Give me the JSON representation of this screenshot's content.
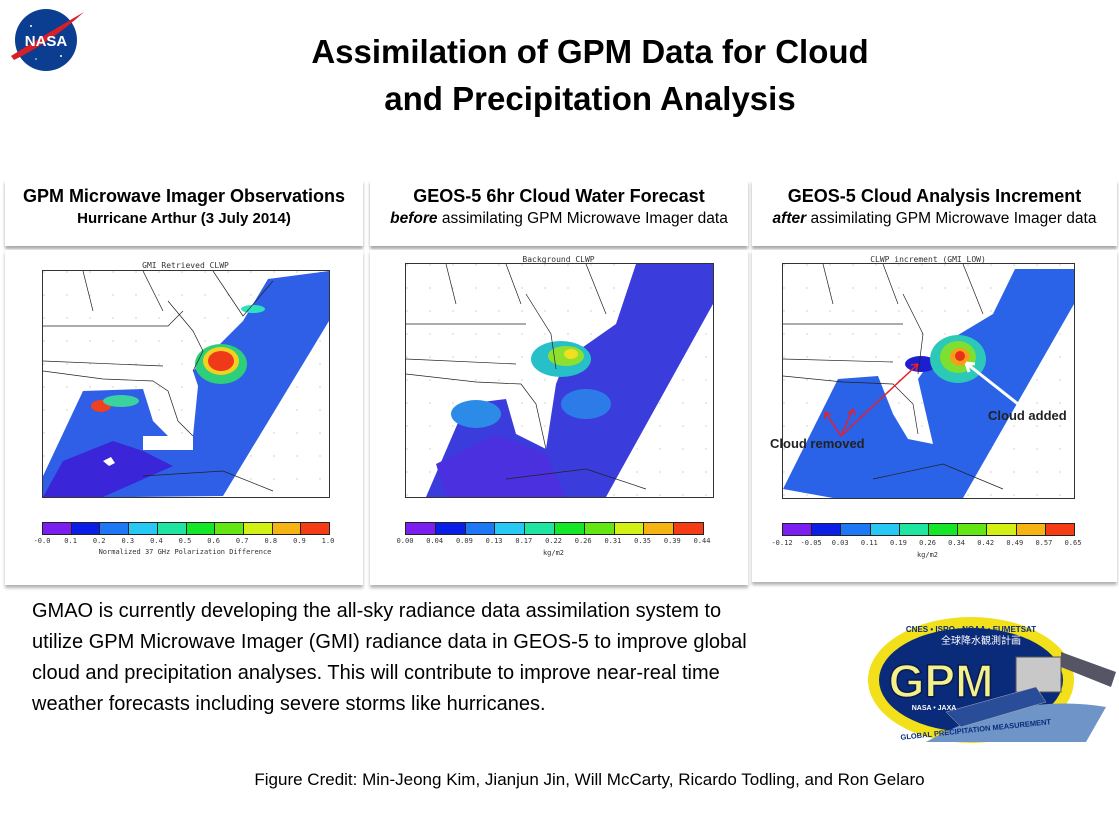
{
  "slide": {
    "title_line1": "Assimilation of GPM Data for Cloud",
    "title_line2": "and Precipitation Analysis",
    "nasa_logo_text": "NASA",
    "gpm_logo": {
      "main": "GPM",
      "top": "CNES • ISRO • NOAA • EUMETSAT",
      "kanji": "全球降水観測計画",
      "sub": "NASA • JAXA",
      "bottom": "GLOBAL PRECIPITATION MEASUREMENT"
    }
  },
  "panels": [
    {
      "heading": "GPM Microwave Imager Observations",
      "subheading": "Hurricane Arthur (3 July 2014)",
      "map_title": "GMI Retrieved CLWP",
      "colorbar_ticks": [
        "-0.0",
        "0.1",
        "0.2",
        "0.3",
        "0.4",
        "0.5",
        "0.6",
        "0.7",
        "0.8",
        "0.9",
        "1.0"
      ],
      "colorbar_label": "Normalized 37 GHz Polarization Difference"
    },
    {
      "heading": "GEOS-5 6hr Cloud Water Forecast",
      "subheading_em": "before",
      "subheading_rest": " assimilating GPM Microwave Imager data",
      "map_title": "Background CLWP",
      "colorbar_ticks": [
        "0.00",
        "0.04",
        "0.09",
        "0.13",
        "0.17",
        "0.22",
        "0.26",
        "0.31",
        "0.35",
        "0.39",
        "0.44"
      ],
      "colorbar_label": "kg/m2"
    },
    {
      "heading": "GEOS-5  Cloud Analysis  Increment",
      "subheading_em": "after",
      "subheading_rest": " assimilating GPM Microwave Imager data",
      "map_title": "CLWP increment (GMI_LOW)",
      "colorbar_ticks": [
        "-0.12",
        "-0.05",
        "0.03",
        "0.11",
        "0.19",
        "0.26",
        "0.34",
        "0.42",
        "0.49",
        "0.57",
        "0.65"
      ],
      "colorbar_label": "kg/m2",
      "annotations": {
        "added": "Cloud added",
        "removed": "Cloud removed"
      }
    }
  ],
  "colorbar_colors": [
    "#7a1ff0",
    "#0a1ee8",
    "#1e78f5",
    "#28c8f5",
    "#1ee6a0",
    "#14e628",
    "#64e614",
    "#d2f014",
    "#f5b414",
    "#f53c14"
  ],
  "body_text": [
    "GMAO is currently developing  the all-sky radiance data assimilation system to",
    "utilize GPM Microwave Imager (GMI) radiance data in GEOS-5 to improve global",
    "cloud and precipitation analyses. This will contribute to improve near-real time",
    "weather forecasts including severe storms like hurricanes."
  ],
  "credit": "Figure Credit:  Min-Jeong Kim, Jianjun Jin, Will McCarty, Ricardo Todling, and Ron Gelaro"
}
